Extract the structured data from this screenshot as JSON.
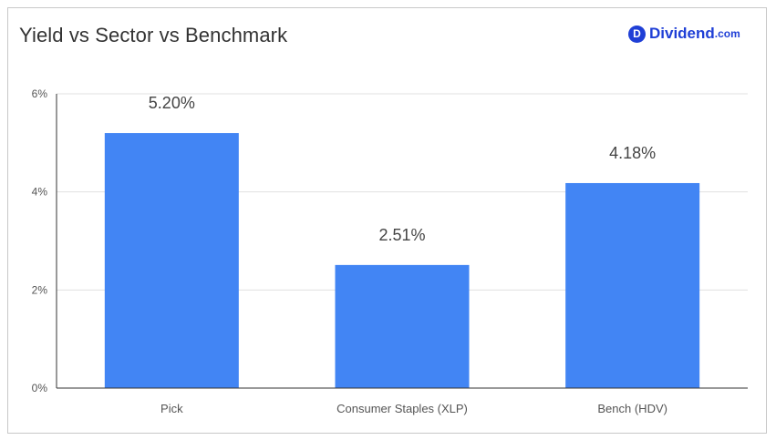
{
  "header": {
    "title": "Yield vs Sector vs Benchmark",
    "logo_letter": "D",
    "logo_name": "Dividend",
    "logo_suffix": ".com"
  },
  "colors": {
    "bar": "#4285f4",
    "grid": "#e0e0e0",
    "axis": "#333333",
    "tick_text": "#555555",
    "label_text": "#444444",
    "brand": "#1f3fd6"
  },
  "chart_data": {
    "type": "bar",
    "title": "Yield vs Sector vs Benchmark",
    "categories": [
      "Pick",
      "Consumer Staples (XLP)",
      "Bench (HDV)"
    ],
    "values": [
      5.2,
      2.51,
      4.18
    ],
    "data_labels": [
      "5.20%",
      "2.51%",
      "4.18%"
    ],
    "ylim": [
      0,
      6
    ],
    "yticks": [
      0,
      2,
      4,
      6
    ],
    "ytick_labels": [
      "0%",
      "2%",
      "4%",
      "6%"
    ],
    "xlabel": "",
    "ylabel": "",
    "grid": true,
    "legend": "none"
  }
}
